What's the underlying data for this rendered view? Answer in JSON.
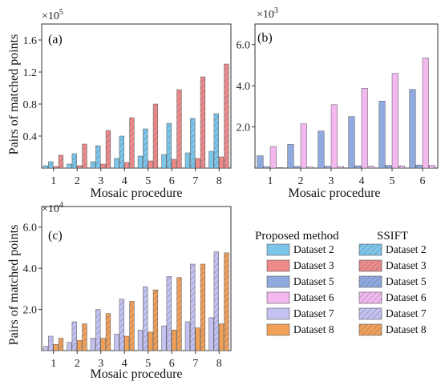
{
  "chart_data": [
    {
      "id": "a",
      "type": "bar",
      "panel_label": "(a)",
      "multiplier": "×10",
      "multiplier_exp": "5",
      "xlabel": "Mosaic procedure",
      "ylabel": "Pairs of matched points",
      "categories": [
        "1",
        "2",
        "3",
        "4",
        "5",
        "6",
        "7",
        "8"
      ],
      "ylim": [
        0,
        180000
      ],
      "yticks": [
        {
          "v": 40000,
          "label": "0.4"
        },
        {
          "v": 80000,
          "label": "0.8"
        },
        {
          "v": 120000,
          "label": "1.2"
        },
        {
          "v": 160000,
          "label": "1.6"
        }
      ],
      "series": [
        {
          "name": "Dataset 2",
          "method": "proposed",
          "color": "#7cc6ea",
          "values": [
            3000,
            5000,
            8000,
            12000,
            15000,
            17000,
            19000,
            21000
          ]
        },
        {
          "name": "Dataset 2",
          "method": "SSIFT",
          "color": "#7cc6ea",
          "values": [
            8000,
            18000,
            28000,
            40000,
            49000,
            56000,
            62000,
            68000
          ]
        },
        {
          "name": "Dataset 3",
          "method": "proposed",
          "color": "#ee8a88",
          "values": [
            2000,
            3000,
            5000,
            7000,
            9000,
            11000,
            12000,
            14000
          ]
        },
        {
          "name": "Dataset 3",
          "method": "SSIFT",
          "color": "#ee8a88",
          "values": [
            16000,
            30000,
            47000,
            63000,
            80000,
            98000,
            114000,
            130000
          ]
        }
      ]
    },
    {
      "id": "b",
      "type": "bar",
      "panel_label": "(b)",
      "multiplier": "×10",
      "multiplier_exp": "3",
      "xlabel": "Mosaic procedure",
      "ylabel": "",
      "categories": [
        "1",
        "2",
        "3",
        "4",
        "5",
        "6"
      ],
      "ylim": [
        0,
        7000
      ],
      "yticks": [
        {
          "v": 2000,
          "label": "2.0"
        },
        {
          "v": 4000,
          "label": "4.0"
        },
        {
          "v": 6000,
          "label": "6.0"
        }
      ],
      "series": [
        {
          "name": "Dataset 5",
          "method": "proposed",
          "color": "#8eaadf",
          "values": [
            600,
            1150,
            1800,
            2500,
            3250,
            3820
          ]
        },
        {
          "name": "Dataset 5",
          "method": "SSIFT",
          "color": "#8eaadf",
          "values": [
            60,
            80,
            90,
            110,
            130,
            150
          ]
        },
        {
          "name": "Dataset 6",
          "method": "proposed",
          "color": "#f2b8ef",
          "values": [
            1050,
            2150,
            3080,
            3880,
            4600,
            5350
          ]
        },
        {
          "name": "Dataset 6",
          "method": "SSIFT",
          "color": "#f2b8ef",
          "values": [
            30,
            50,
            70,
            90,
            110,
            130
          ]
        }
      ]
    },
    {
      "id": "c",
      "type": "bar",
      "panel_label": "(c)",
      "multiplier": "×10",
      "multiplier_exp": "4",
      "xlabel": "Mosaic procedure",
      "ylabel": "Pairs of matched points",
      "categories": [
        "1",
        "2",
        "3",
        "4",
        "5",
        "6",
        "7",
        "8"
      ],
      "ylim": [
        0,
        70000
      ],
      "yticks": [
        {
          "v": 20000,
          "label": "2.0"
        },
        {
          "v": 40000,
          "label": "4.0"
        },
        {
          "v": 60000,
          "label": "6.0"
        }
      ],
      "series": [
        {
          "name": "Dataset 7",
          "method": "proposed",
          "color": "#c4c2f0",
          "values": [
            2000,
            4000,
            6000,
            8000,
            10000,
            12000,
            14000,
            16000
          ]
        },
        {
          "name": "Dataset 7",
          "method": "SSIFT",
          "color": "#c4c2f0",
          "values": [
            7000,
            14000,
            20000,
            25000,
            31000,
            36000,
            42000,
            48000
          ]
        },
        {
          "name": "Dataset 8",
          "method": "proposed",
          "color": "#f0a057",
          "values": [
            3000,
            5000,
            6000,
            7000,
            9000,
            10000,
            11000,
            13000
          ]
        },
        {
          "name": "Dataset 8",
          "method": "SSIFT",
          "color": "#f0a057",
          "values": [
            6000,
            13000,
            18000,
            24000,
            29500,
            35500,
            42000,
            47500
          ]
        }
      ]
    }
  ],
  "legend": {
    "proposed_header": "Proposed method",
    "ssift_header": "SSIFT",
    "entries": [
      {
        "label": "Dataset 2",
        "color": "#7cc6ea"
      },
      {
        "label": "Dataset 3",
        "color": "#ee8a88"
      },
      {
        "label": "Dataset 5",
        "color": "#8eaadf"
      },
      {
        "label": "Dataset 6",
        "color": "#f2b8ef"
      },
      {
        "label": "Dataset 7",
        "color": "#c4c2f0"
      },
      {
        "label": "Dataset 8",
        "color": "#f0a057"
      }
    ]
  }
}
